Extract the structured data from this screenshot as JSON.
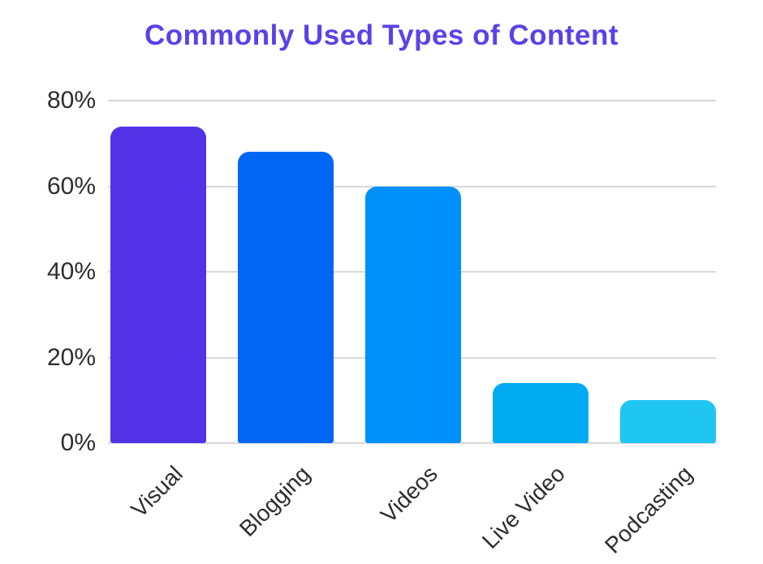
{
  "title": "Commonly Used Types of Content",
  "chart_data": {
    "type": "bar",
    "title": "Commonly Used Types of Content",
    "categories": [
      "Visual",
      "Blogging",
      "Videos",
      "Live Video",
      "Podcasting"
    ],
    "values": [
      74,
      68,
      60,
      14,
      10
    ],
    "bar_colors": [
      "#5233e8",
      "#0066f3",
      "#0090fa",
      "#00abf2",
      "#1fc6f1"
    ],
    "xlabel": "",
    "ylabel": "",
    "ylim": [
      0,
      80
    ],
    "ytick_values": [
      0,
      20,
      40,
      60,
      80
    ],
    "ytick_labels": [
      "0%",
      "20%",
      "40%",
      "60%",
      "80%"
    ],
    "grid": true,
    "legend": "none",
    "colors": {
      "title": "#5a42e8",
      "axis_text": "#2e2e2e",
      "gridline": "#d9d9d9",
      "background": "#ffffff"
    }
  }
}
